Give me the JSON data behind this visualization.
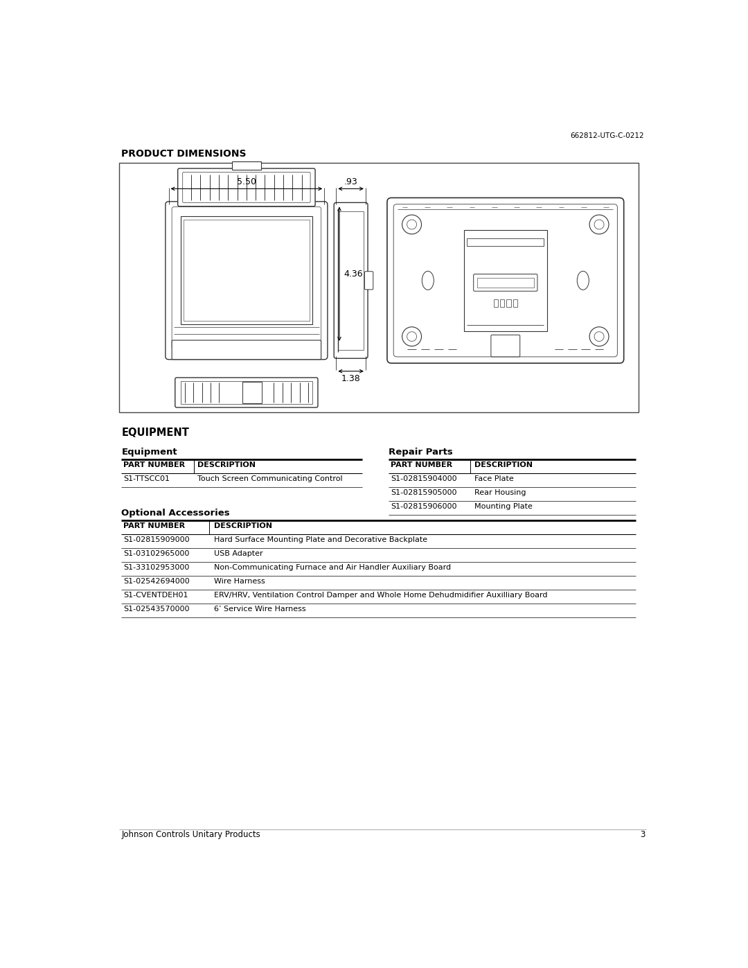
{
  "page_number": "3",
  "doc_number": "662812-UTG-C-0212",
  "footer_left": "Johnson Controls Unitary Products",
  "section1_title": "PRODUCT DIMENSIONS",
  "section2_title": "EQUIPMENT",
  "equip_sub_title": "Equipment",
  "repair_sub_title": "Repair Parts",
  "optional_sub_title": "Optional Accessories",
  "dim_550": "5.50",
  "dim_093": ".93",
  "dim_436": "4.36",
  "dim_138": "1.38",
  "equip_headers": [
    "PART NUMBER",
    "DESCRIPTION"
  ],
  "equip_rows": [
    [
      "S1-TTSCC01",
      "Touch Screen Communicating Control"
    ]
  ],
  "repair_headers": [
    "PART NUMBER",
    "DESCRIPTION"
  ],
  "repair_rows": [
    [
      "S1-02815904000",
      "Face Plate"
    ],
    [
      "S1-02815905000",
      "Rear Housing"
    ],
    [
      "S1-02815906000",
      "Mounting Plate"
    ]
  ],
  "optional_headers": [
    "PART NUMBER",
    "DESCRIPTION"
  ],
  "optional_rows": [
    [
      "S1-02815909000",
      "Hard Surface Mounting Plate and Decorative Backplate"
    ],
    [
      "S1-03102965000",
      "USB Adapter"
    ],
    [
      "S1-33102953000",
      "Non-Communicating Furnace and Air Handler Auxiliary Board"
    ],
    [
      "S1-02542694000",
      "Wire Harness"
    ],
    [
      "S1-CVENTDEH01",
      "ERV/HRV, Ventilation Control Damper and Whole Home Dehudmidifier Auxilliary Board"
    ],
    [
      "S1-02543570000",
      "6’ Service Wire Harness"
    ]
  ],
  "bg_color": "#ffffff",
  "text_color": "#000000",
  "lc": "#333333",
  "lc2": "#555555"
}
